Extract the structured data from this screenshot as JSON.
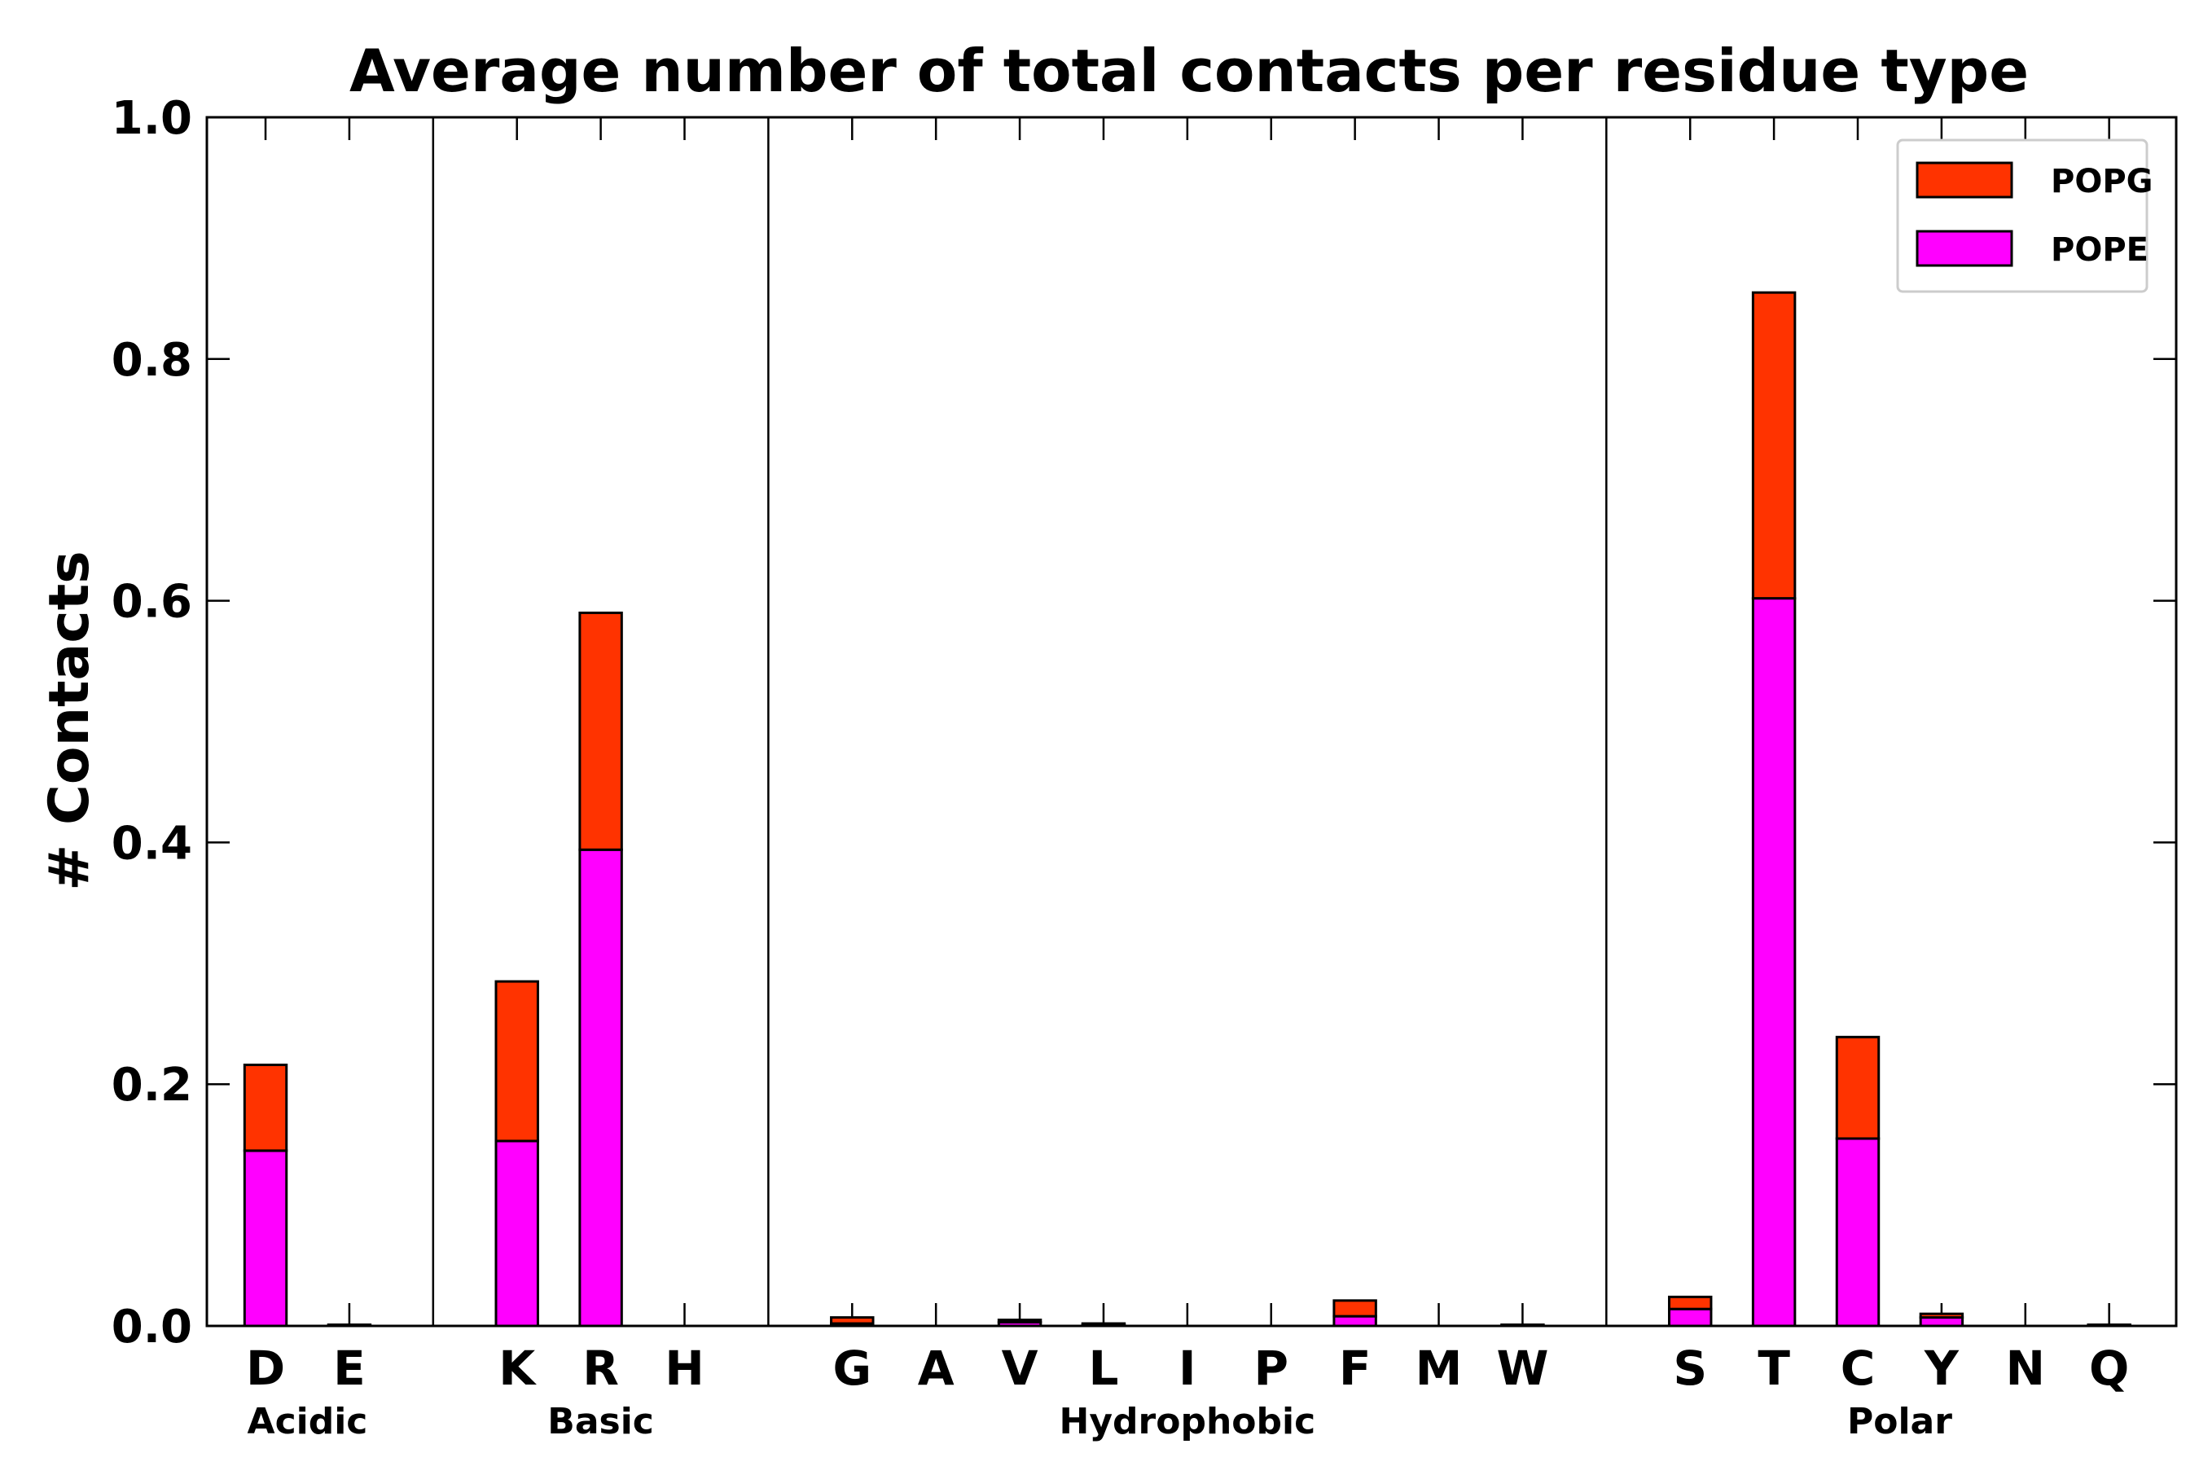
{
  "chart_data": {
    "type": "bar",
    "stacked": true,
    "title": "Average number of total contacts per residue type",
    "xlabel": "",
    "ylabel": "# Contacts",
    "ylim": [
      0,
      1.0
    ],
    "yticks": [
      "0.0",
      "0.2",
      "0.4",
      "0.6",
      "0.8",
      "1.0"
    ],
    "categories": [
      "D",
      "E",
      "K",
      "R",
      "H",
      "G",
      "A",
      "V",
      "L",
      "I",
      "P",
      "F",
      "M",
      "W",
      "S",
      "T",
      "C",
      "Y",
      "N",
      "Q"
    ],
    "groups": [
      {
        "name": "Acidic",
        "members": [
          "D",
          "E"
        ]
      },
      {
        "name": "Basic",
        "members": [
          "K",
          "R",
          "H"
        ]
      },
      {
        "name": "Hydrophobic",
        "members": [
          "G",
          "A",
          "V",
          "L",
          "I",
          "P",
          "F",
          "M",
          "W"
        ]
      },
      {
        "name": "Polar",
        "members": [
          "S",
          "T",
          "C",
          "Y",
          "N",
          "Q"
        ]
      }
    ],
    "series": [
      {
        "name": "POPE",
        "color": "#ff00ff",
        "values": [
          0.145,
          0.0,
          0.153,
          0.394,
          0.0,
          0.002,
          0.0,
          0.003,
          0.001,
          0.0,
          0.0,
          0.008,
          0.0,
          0.0,
          0.014,
          0.602,
          0.155,
          0.007,
          0.0,
          0.0
        ]
      },
      {
        "name": "POPG",
        "color": "#ff3300",
        "values": [
          0.071,
          0.001,
          0.132,
          0.196,
          0.0,
          0.005,
          0.0,
          0.002,
          0.001,
          0.0,
          0.0,
          0.013,
          0.0,
          0.001,
          0.01,
          0.253,
          0.084,
          0.003,
          0.0,
          0.001
        ]
      }
    ],
    "legend": {
      "position": "top-right",
      "order": [
        "POPG",
        "POPE"
      ]
    },
    "grid": false
  }
}
